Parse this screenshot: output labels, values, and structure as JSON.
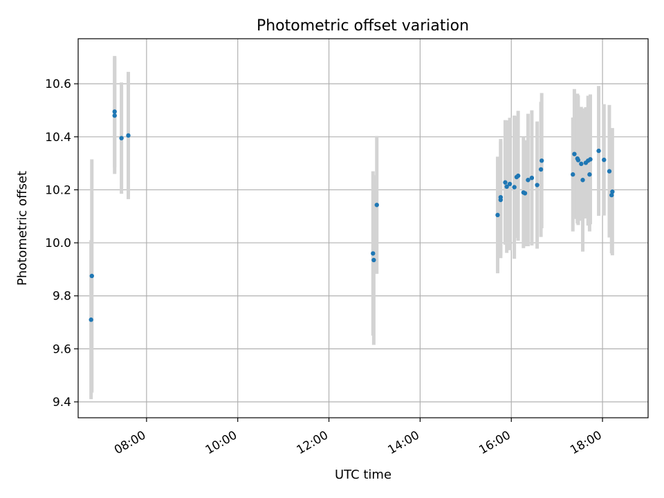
{
  "chart_data": {
    "type": "scatter",
    "title": "Photometric offset variation",
    "xlabel": "UTC time",
    "ylabel": "Photometric offset",
    "x_axis_kind": "time",
    "xlim": [
      "06:30",
      "19:00"
    ],
    "ylim": [
      9.34,
      10.77
    ],
    "x_ticks": [
      "08:00",
      "10:00",
      "12:00",
      "14:00",
      "16:00",
      "18:00"
    ],
    "y_ticks": [
      9.4,
      9.6,
      9.8,
      10.0,
      10.2,
      10.4,
      10.6
    ],
    "y_tick_labels": [
      "9.4",
      "9.6",
      "9.8",
      "10.0",
      "10.2",
      "10.4",
      "10.6"
    ],
    "grid": true,
    "legend": "none",
    "colors": {
      "points": "#1f77b4",
      "error_bars": "#d3d3d3",
      "grid": "#b0b0b0"
    },
    "series": [
      {
        "points": [
          {
            "x": "06:47",
            "y": 9.71,
            "err": 0.3
          },
          {
            "x": "06:48",
            "y": 9.875,
            "err": 0.44
          },
          {
            "x": "07:18",
            "y": 10.495,
            "err": 0.21
          },
          {
            "x": "07:18",
            "y": 10.48,
            "err": 0.22
          },
          {
            "x": "07:27",
            "y": 10.395,
            "err": 0.21
          },
          {
            "x": "07:36",
            "y": 10.405,
            "err": 0.24
          },
          {
            "x": "12:58",
            "y": 9.96,
            "err": 0.31
          },
          {
            "x": "12:59",
            "y": 9.935,
            "err": 0.32
          },
          {
            "x": "13:03",
            "y": 10.143,
            "err": 0.26
          },
          {
            "x": "15:42",
            "y": 10.105,
            "err": 0.22
          },
          {
            "x": "15:46",
            "y": 10.172,
            "err": 0.22
          },
          {
            "x": "15:46",
            "y": 10.162,
            "err": 0.22
          },
          {
            "x": "15:52",
            "y": 10.228,
            "err": 0.235
          },
          {
            "x": "15:54",
            "y": 10.212,
            "err": 0.25
          },
          {
            "x": "15:58",
            "y": 10.222,
            "err": 0.25
          },
          {
            "x": "16:04",
            "y": 10.21,
            "err": 0.27
          },
          {
            "x": "16:07",
            "y": 10.248,
            "err": 0.23
          },
          {
            "x": "16:09",
            "y": 10.253,
            "err": 0.245
          },
          {
            "x": "16:16",
            "y": 10.19,
            "err": 0.21
          },
          {
            "x": "16:18",
            "y": 10.187,
            "err": 0.2
          },
          {
            "x": "16:22",
            "y": 10.237,
            "err": 0.25
          },
          {
            "x": "16:27",
            "y": 10.245,
            "err": 0.255
          },
          {
            "x": "16:34",
            "y": 10.218,
            "err": 0.24
          },
          {
            "x": "16:39",
            "y": 10.277,
            "err": 0.255
          },
          {
            "x": "16:40",
            "y": 10.31,
            "err": 0.255
          },
          {
            "x": "17:21",
            "y": 10.258,
            "err": 0.215
          },
          {
            "x": "17:23",
            "y": 10.335,
            "err": 0.245
          },
          {
            "x": "17:27",
            "y": 10.318,
            "err": 0.245
          },
          {
            "x": "17:28",
            "y": 10.312,
            "err": 0.245
          },
          {
            "x": "17:32",
            "y": 10.298,
            "err": 0.215
          },
          {
            "x": "17:34",
            "y": 10.237,
            "err": 0.27
          },
          {
            "x": "17:38",
            "y": 10.302,
            "err": 0.21
          },
          {
            "x": "17:41",
            "y": 10.31,
            "err": 0.245
          },
          {
            "x": "17:43",
            "y": 10.258,
            "err": 0.215
          },
          {
            "x": "17:44",
            "y": 10.315,
            "err": 0.245
          },
          {
            "x": "17:55",
            "y": 10.347,
            "err": 0.245
          },
          {
            "x": "18:02",
            "y": 10.313,
            "err": 0.21
          },
          {
            "x": "18:09",
            "y": 10.27,
            "err": 0.25
          },
          {
            "x": "18:12",
            "y": 10.18,
            "err": 0.22
          },
          {
            "x": "18:13",
            "y": 10.193,
            "err": 0.24
          }
        ]
      }
    ]
  }
}
